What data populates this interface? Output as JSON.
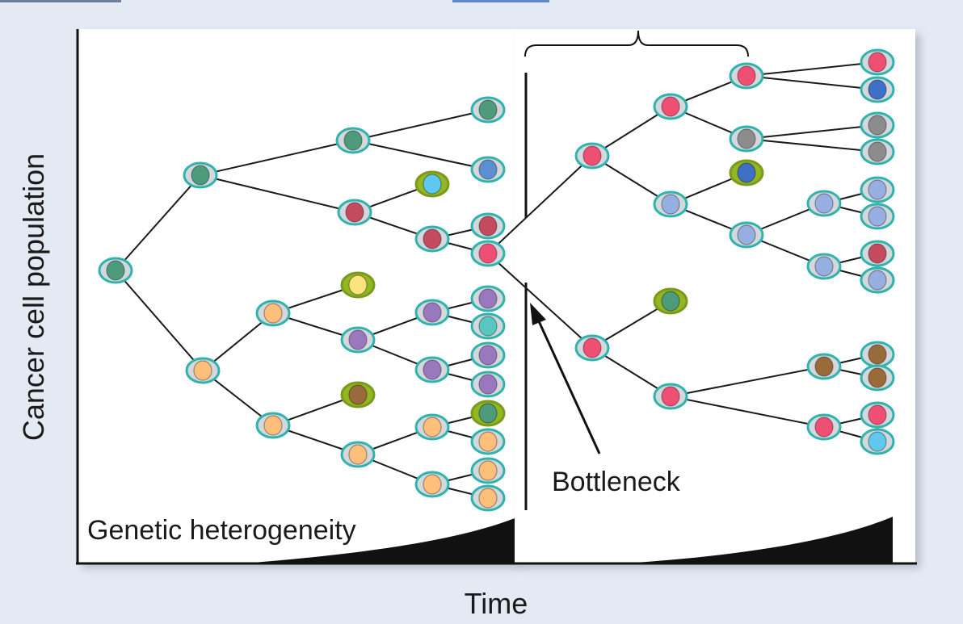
{
  "labels": {
    "y_axis": "Cancer cell population",
    "x_axis": "Time",
    "left_panel": "Genetic heterogeneity",
    "bottleneck": "Bottleneck"
  },
  "colors": {
    "background": "#e4eaf4",
    "panel": "#ffffff",
    "line": "#1a1a1a",
    "cell_ring": "#2fb3ad",
    "cell_body": "#d4d7dc",
    "selected_ring": "#93b623",
    "nucleus": {
      "green": "#4d9b7b",
      "blue": "#5b8fd0",
      "lightblue": "#5ec8ee",
      "red": "#c44a5e",
      "pink": "#ef4f72",
      "yellow": "#fbe37b",
      "purple": "#9a78bd",
      "teal": "#58c6c1",
      "orange": "#fdbf7a",
      "brown": "#9a6b3a",
      "gray": "#8c8c8c",
      "navy": "#3f6fc6",
      "periwinkle": "#97afe0"
    }
  },
  "cells": [
    {
      "id": "a0",
      "nucleus": "green"
    },
    {
      "id": "a1",
      "nucleus": "green"
    },
    {
      "id": "a2",
      "nucleus": "orange"
    },
    {
      "id": "a3",
      "nucleus": "green"
    },
    {
      "id": "a4",
      "nucleus": "red"
    },
    {
      "id": "a5",
      "nucleus": "orange"
    },
    {
      "id": "a6",
      "nucleus": "orange"
    },
    {
      "id": "a7",
      "nucleus": "green"
    },
    {
      "id": "a8",
      "nucleus": "blue"
    },
    {
      "id": "a9",
      "nucleus": "lightblue",
      "selected": true
    },
    {
      "id": "a10",
      "nucleus": "red"
    },
    {
      "id": "a11",
      "nucleus": "red"
    },
    {
      "id": "a12",
      "nucleus": "pink"
    },
    {
      "id": "a13",
      "nucleus": "yellow",
      "selected": true
    },
    {
      "id": "a14",
      "nucleus": "purple"
    },
    {
      "id": "a15",
      "nucleus": "purple"
    },
    {
      "id": "a16",
      "nucleus": "purple"
    },
    {
      "id": "a17",
      "nucleus": "teal"
    },
    {
      "id": "a18",
      "nucleus": "purple"
    },
    {
      "id": "a19",
      "nucleus": "purple"
    },
    {
      "id": "a20",
      "nucleus": "purple"
    },
    {
      "id": "a21",
      "nucleus": "brown",
      "selected": true
    },
    {
      "id": "a22",
      "nucleus": "orange"
    },
    {
      "id": "a23",
      "nucleus": "orange"
    },
    {
      "id": "a24",
      "nucleus": "green",
      "selected": true
    },
    {
      "id": "a25",
      "nucleus": "orange"
    },
    {
      "id": "a26",
      "nucleus": "orange"
    },
    {
      "id": "a27",
      "nucleus": "orange"
    },
    {
      "id": "a28",
      "nucleus": "orange"
    },
    {
      "id": "b1",
      "nucleus": "pink"
    },
    {
      "id": "b2",
      "nucleus": "pink"
    },
    {
      "id": "b3",
      "nucleus": "periwinkle"
    },
    {
      "id": "b4",
      "nucleus": "pink"
    },
    {
      "id": "b5",
      "nucleus": "gray"
    },
    {
      "id": "b6",
      "nucleus": "navy",
      "selected": true
    },
    {
      "id": "b7",
      "nucleus": "periwinkle"
    },
    {
      "id": "b8",
      "nucleus": "pink"
    },
    {
      "id": "b9",
      "nucleus": "navy"
    },
    {
      "id": "b10",
      "nucleus": "gray"
    },
    {
      "id": "b11",
      "nucleus": "gray"
    },
    {
      "id": "b12",
      "nucleus": "periwinkle"
    },
    {
      "id": "b13",
      "nucleus": "periwinkle"
    },
    {
      "id": "b14",
      "nucleus": "periwinkle"
    },
    {
      "id": "b15",
      "nucleus": "periwinkle"
    },
    {
      "id": "b16",
      "nucleus": "periwinkle"
    },
    {
      "id": "b17",
      "nucleus": "red"
    },
    {
      "id": "b18",
      "nucleus": "periwinkle"
    },
    {
      "id": "b19",
      "nucleus": "pink"
    },
    {
      "id": "b20",
      "nucleus": "green",
      "selected": true
    },
    {
      "id": "b21",
      "nucleus": "pink"
    },
    {
      "id": "b22",
      "nucleus": "brown"
    },
    {
      "id": "b23",
      "nucleus": "pink"
    },
    {
      "id": "b24",
      "nucleus": "brown"
    },
    {
      "id": "b25",
      "nucleus": "brown"
    },
    {
      "id": "b26",
      "nucleus": "pink"
    },
    {
      "id": "b27",
      "nucleus": "lightblue"
    }
  ],
  "lineage": [
    [
      "a0",
      "a1"
    ],
    [
      "a0",
      "a2"
    ],
    [
      "a1",
      "a3"
    ],
    [
      "a1",
      "a4"
    ],
    [
      "a2",
      "a5"
    ],
    [
      "a2",
      "a6"
    ],
    [
      "a3",
      "a7"
    ],
    [
      "a3",
      "a8"
    ],
    [
      "a4",
      "a9"
    ],
    [
      "a4",
      "a10"
    ],
    [
      "a10",
      "a11"
    ],
    [
      "a10",
      "a12"
    ],
    [
      "a5",
      "a13"
    ],
    [
      "a5",
      "a14"
    ],
    [
      "a14",
      "a15"
    ],
    [
      "a14",
      "a16"
    ],
    [
      "a15",
      "a17"
    ],
    [
      "a15",
      "a18"
    ],
    [
      "a16",
      "a19"
    ],
    [
      "a16",
      "a20"
    ],
    [
      "a6",
      "a21"
    ],
    [
      "a6",
      "a22"
    ],
    [
      "a22",
      "a23"
    ],
    [
      "a22",
      "a25"
    ],
    [
      "a23",
      "a24"
    ],
    [
      "a23",
      "a26"
    ],
    [
      "a25",
      "a27"
    ],
    [
      "a25",
      "a28"
    ],
    [
      "a12",
      "b1"
    ],
    [
      "a12",
      "b19"
    ],
    [
      "b1",
      "b2"
    ],
    [
      "b1",
      "b3"
    ],
    [
      "b2",
      "b4"
    ],
    [
      "b2",
      "b5"
    ],
    [
      "b3",
      "b6"
    ],
    [
      "b3",
      "b7"
    ],
    [
      "b4",
      "b8"
    ],
    [
      "b4",
      "b9"
    ],
    [
      "b5",
      "b10"
    ],
    [
      "b5",
      "b11"
    ],
    [
      "b7",
      "b12"
    ],
    [
      "b7",
      "b13"
    ],
    [
      "b12",
      "b14"
    ],
    [
      "b12",
      "b15"
    ],
    [
      "b13",
      "b16"
    ],
    [
      "b13",
      "b17"
    ],
    [
      "b19",
      "b20"
    ],
    [
      "b19",
      "b21"
    ],
    [
      "b21",
      "b22"
    ],
    [
      "b21",
      "b23"
    ],
    [
      "b22",
      "b24"
    ],
    [
      "b22",
      "b25"
    ],
    [
      "b23",
      "b26"
    ],
    [
      "b23",
      "b27"
    ]
  ]
}
